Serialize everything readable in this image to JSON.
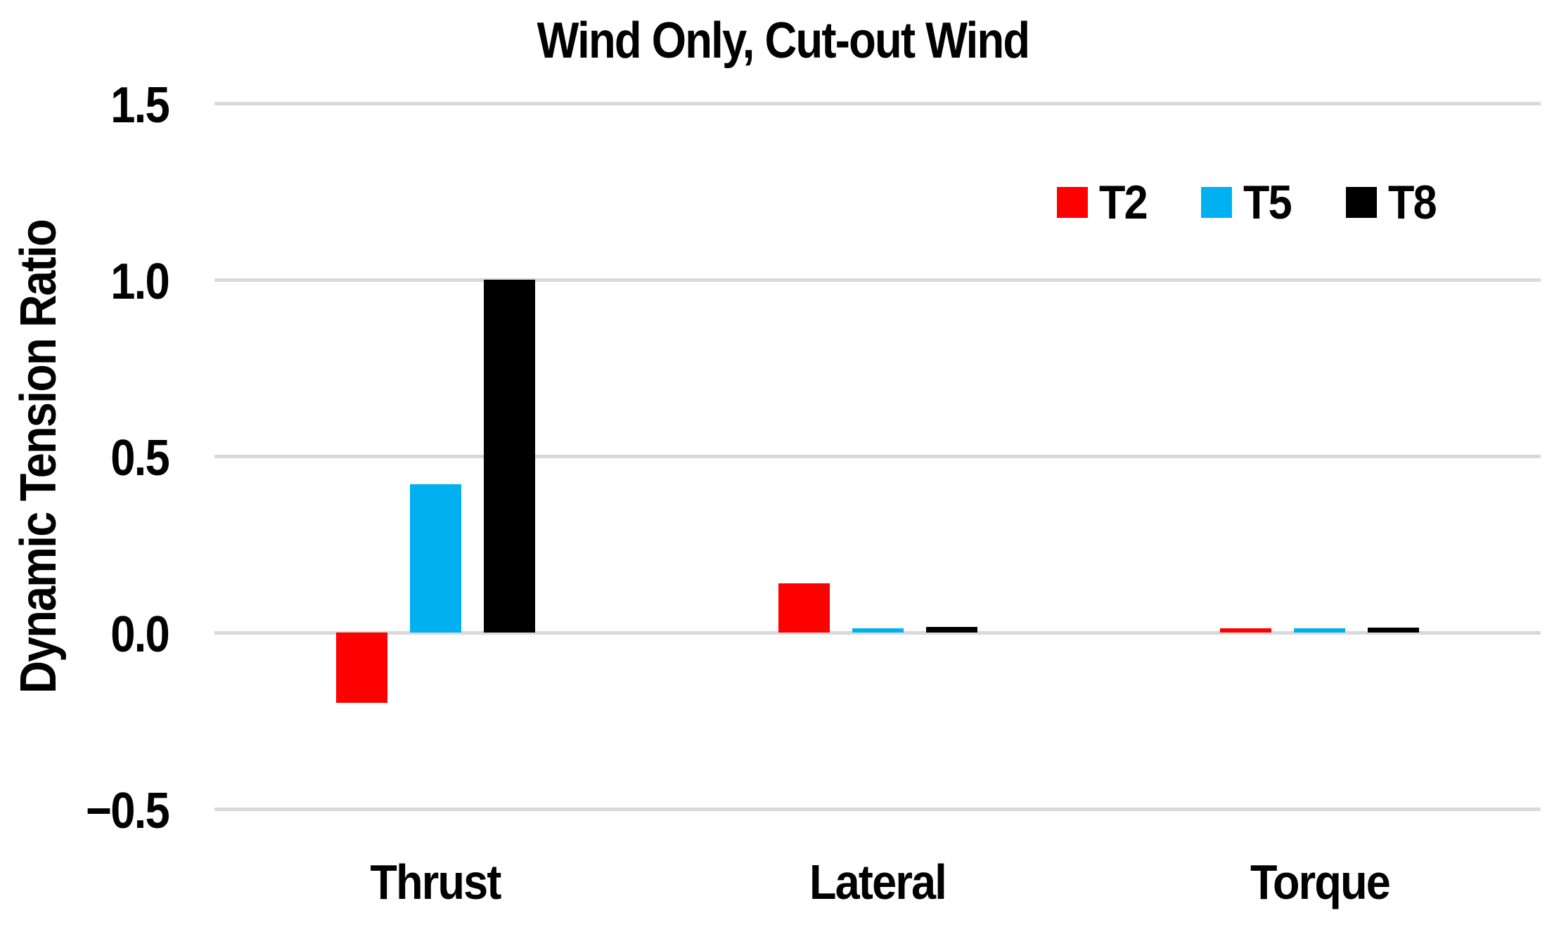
{
  "chart_data": {
    "type": "bar",
    "title": "Wind Only, Cut-out Wind",
    "xlabel": "",
    "ylabel": "Dynamic Tension Ratio",
    "categories": [
      "Thrust",
      "Lateral",
      "Torque"
    ],
    "series": [
      {
        "name": "T2",
        "color": "#FF0000",
        "values": [
          -0.2,
          0.14,
          0.012
        ]
      },
      {
        "name": "T5",
        "color": "#00B0F0",
        "values": [
          0.42,
          0.012,
          0.012
        ]
      },
      {
        "name": "T8",
        "color": "#000000",
        "values": [
          1.0,
          0.015,
          0.013
        ]
      }
    ],
    "ylim": [
      -0.5,
      1.5
    ],
    "yticks": [
      1.5,
      1.0,
      0.5,
      0.0,
      -0.5
    ],
    "ytick_labels": [
      "1.5",
      "1.0",
      "0.5",
      "0.0",
      "−0.5"
    ],
    "grid": true,
    "gridline_color": "#D9D9D9",
    "baseline_value": 0,
    "legend_position": "inside-top-right"
  }
}
